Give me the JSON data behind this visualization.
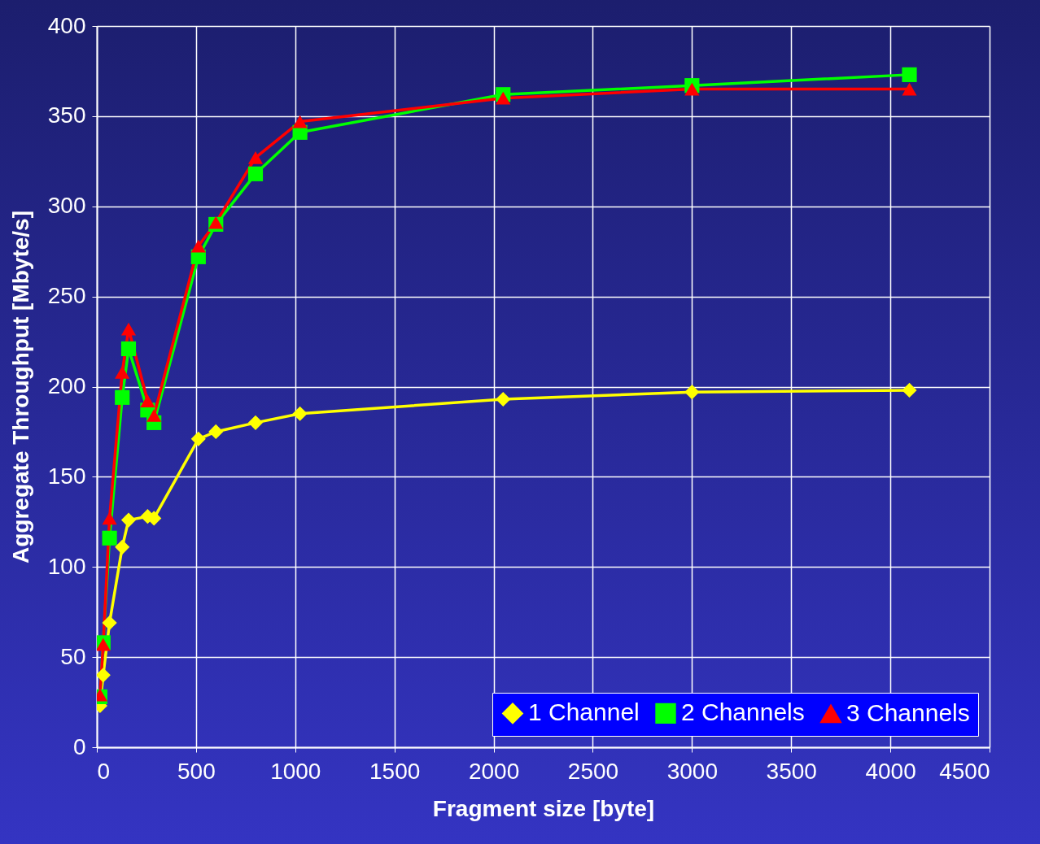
{
  "chart_data": {
    "type": "line",
    "xlabel": "Fragment size [byte]",
    "ylabel": "Aggregate Throughput [Mbyte/s]",
    "x": [
      16,
      32,
      64,
      128,
      160,
      256,
      288,
      512,
      600,
      800,
      1024,
      2048,
      3000,
      4096
    ],
    "series": [
      {
        "name": "1 Channel",
        "color": "#ffff00",
        "marker": "diamond",
        "values": [
          23,
          40,
          69,
          111,
          126,
          128,
          127,
          171,
          175,
          180,
          185,
          193,
          197,
          198
        ]
      },
      {
        "name": "2 Channels",
        "color": "#00ff00",
        "marker": "square",
        "values": [
          28,
          58,
          116,
          194,
          221,
          187,
          180,
          272,
          290,
          318,
          341,
          362,
          367,
          373
        ]
      },
      {
        "name": "3 Channels",
        "color": "#ff0000",
        "marker": "triangle",
        "values": [
          29,
          57,
          127,
          208,
          232,
          192,
          184,
          278,
          291,
          327,
          347,
          360,
          365,
          365
        ]
      }
    ],
    "xlim": [
      0,
      4500
    ],
    "xticks": [
      0,
      500,
      1000,
      1500,
      2000,
      2500,
      3000,
      3500,
      4000,
      4500
    ],
    "ylim": [
      0,
      400
    ],
    "yticks": [
      0,
      50,
      100,
      150,
      200,
      250,
      300,
      350,
      400
    ],
    "grid": true,
    "legend": "bottom right",
    "line_style": "solid"
  }
}
